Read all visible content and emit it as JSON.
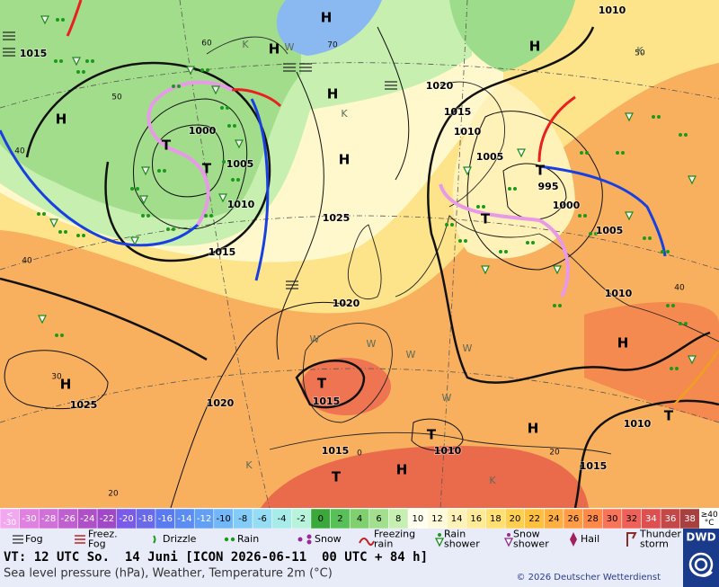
{
  "map": {
    "pressure_labels": [
      "1015",
      "1000",
      "1005",
      "1010",
      "1015",
      "1025",
      "1020",
      "1015",
      "1010",
      "1005",
      "995",
      "1000",
      "1005",
      "1010",
      "1010",
      "1020",
      "1025",
      "1020",
      "1015",
      "1015",
      "1010",
      "1010",
      "1015"
    ],
    "contour_labels": [
      "50",
      "60",
      "40",
      "40",
      "30",
      "20",
      "50",
      "40",
      "20",
      "0",
      "70"
    ],
    "highs": [
      "H",
      "H",
      "H",
      "H",
      "H",
      "H",
      "H",
      "H",
      "H",
      "H"
    ],
    "lows": [
      "T",
      "T",
      "T",
      "T",
      "T",
      "T",
      "T",
      "T"
    ],
    "cold_marks": [
      "K",
      "K",
      "K",
      "K",
      "K"
    ],
    "warm_marks": [
      "W",
      "W",
      "W",
      "W",
      "W",
      "W"
    ]
  },
  "scale": [
    {
      "lines": [
        "<",
        "-30"
      ],
      "color": "#f2a8f0"
    },
    {
      "lines": [
        "-30"
      ],
      "color": "#e080e0"
    },
    {
      "lines": [
        "-28"
      ],
      "color": "#d070d8"
    },
    {
      "lines": [
        "-26"
      ],
      "color": "#c060d0"
    },
    {
      "lines": [
        "-24"
      ],
      "color": "#b050c8"
    },
    {
      "lines": [
        "-22"
      ],
      "color": "#a048c8"
    },
    {
      "lines": [
        "-20"
      ],
      "color": "#7a5ae8"
    },
    {
      "lines": [
        "-18"
      ],
      "color": "#6a6ae8"
    },
    {
      "lines": [
        "-16"
      ],
      "color": "#5a7af0"
    },
    {
      "lines": [
        "-14"
      ],
      "color": "#5a8cf2"
    },
    {
      "lines": [
        "-12"
      ],
      "color": "#62a0f6"
    },
    {
      "lines": [
        "-10"
      ],
      "color": "#72b8f8"
    },
    {
      "lines": [
        "-8"
      ],
      "color": "#84ccf8"
    },
    {
      "lines": [
        "-6"
      ],
      "color": "#96dcf4"
    },
    {
      "lines": [
        "-4"
      ],
      "color": "#a8ecea"
    },
    {
      "lines": [
        "-2"
      ],
      "color": "#b8f4dc"
    },
    {
      "lines": [
        "0"
      ],
      "color": "#3aa83a"
    },
    {
      "lines": [
        "2"
      ],
      "color": "#58c058"
    },
    {
      "lines": [
        "4"
      ],
      "color": "#80d070"
    },
    {
      "lines": [
        "6"
      ],
      "color": "#a2e090"
    },
    {
      "lines": [
        "8"
      ],
      "color": "#c6f0b2"
    },
    {
      "lines": [
        "10"
      ],
      "color": "#fffff0"
    },
    {
      "lines": [
        "12"
      ],
      "color": "#fffadc"
    },
    {
      "lines": [
        "14"
      ],
      "color": "#fff2b8"
    },
    {
      "lines": [
        "16"
      ],
      "color": "#ffea98"
    },
    {
      "lines": [
        "18"
      ],
      "color": "#ffe070"
    },
    {
      "lines": [
        "20"
      ],
      "color": "#ffd050"
    },
    {
      "lines": [
        "22"
      ],
      "color": "#ffc040"
    },
    {
      "lines": [
        "24"
      ],
      "color": "#ffae40"
    },
    {
      "lines": [
        "26"
      ],
      "color": "#ff9c44"
    },
    {
      "lines": [
        "28"
      ],
      "color": "#ff8a48"
    },
    {
      "lines": [
        "30"
      ],
      "color": "#f87458"
    },
    {
      "lines": [
        "32"
      ],
      "color": "#ee6058"
    },
    {
      "lines": [
        "34"
      ],
      "color": "#de5050"
    },
    {
      "lines": [
        "36"
      ],
      "color": "#c44848"
    },
    {
      "lines": [
        "38"
      ],
      "color": "#a84040"
    },
    {
      "lines": [
        "≥40",
        "°C"
      ],
      "color": "#ffffff"
    }
  ],
  "legend": [
    {
      "lines": [
        "Fog"
      ]
    },
    {
      "lines": [
        "Freez.",
        "Fog"
      ]
    },
    {
      "lines": [
        "Drizzle"
      ]
    },
    {
      "lines": [
        "Rain"
      ]
    },
    {
      "lines": [
        "Snow"
      ]
    },
    {
      "lines": [
        "Freezing",
        "rain"
      ]
    },
    {
      "lines": [
        "Rain",
        "shower"
      ]
    },
    {
      "lines": [
        "Snow",
        "shower"
      ]
    },
    {
      "lines": [
        "Hail"
      ]
    },
    {
      "lines": [
        "Thunder",
        "storm"
      ]
    }
  ],
  "footer": {
    "valid_time": "VT: 12 UTC So.  14 Juni [ICON 2026-06-11  00 UTC + 84 h]",
    "description": "Sea level pressure (hPa), Weather, Temperature 2m (°C)",
    "copyright": "© 2026 Deutscher Wetterdienst",
    "logo": "DWD"
  }
}
